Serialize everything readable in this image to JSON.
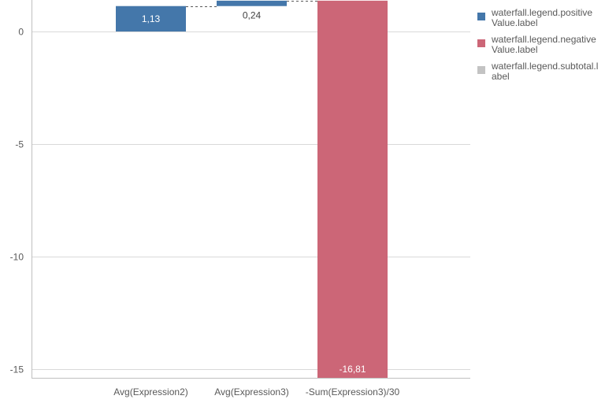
{
  "chart_data": {
    "type": "bar",
    "variant": "waterfall",
    "categories": [
      "Avg(Expression2)",
      "Avg(Expression3)",
      "-Sum(Expression3)/30"
    ],
    "values": [
      1.13,
      0.24,
      -16.81
    ],
    "value_labels": [
      "1,13",
      "0,24",
      "-16,81"
    ],
    "ylim": [
      -15.4,
      1.4
    ],
    "y_ticks": [
      0,
      -5,
      -10,
      -15
    ],
    "y_tick_labels": [
      "0",
      "-5",
      "-10",
      "-15"
    ],
    "grid": true,
    "legend_position": "right",
    "legend": [
      {
        "label": "waterfall.legend.positiveValue.label",
        "color": "#4477aa"
      },
      {
        "label": "waterfall.legend.negativeValue.label",
        "color": "#cc6677"
      },
      {
        "label": "waterfall.legend.subtotal.label",
        "color": "#c3c3c3"
      }
    ],
    "colors": {
      "positive": "#4477aa",
      "negative": "#cc6677",
      "grid": "#d9d9d9",
      "axis": "#bfbfbf",
      "connector": "#595959"
    }
  }
}
